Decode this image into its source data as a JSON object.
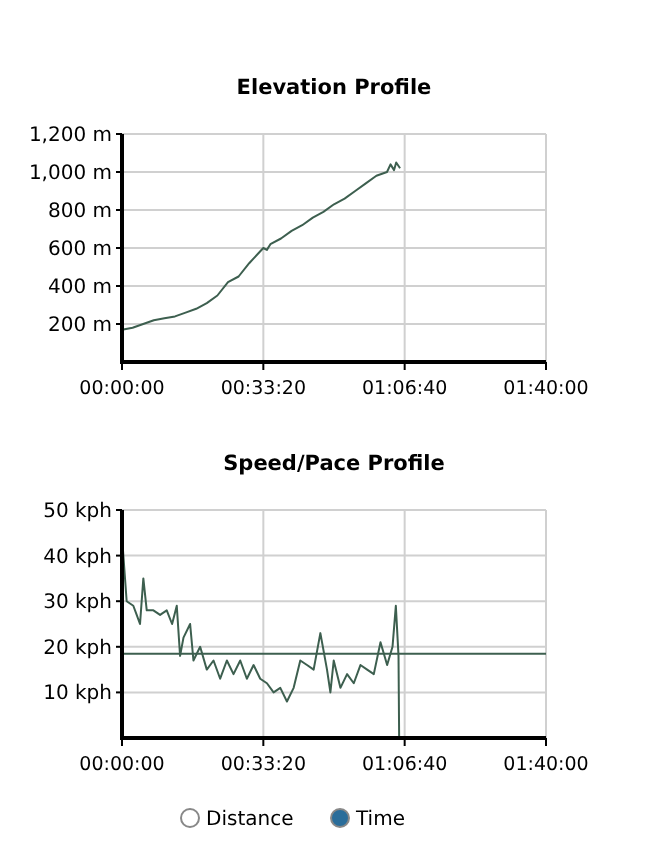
{
  "chart_data": [
    {
      "type": "line",
      "title": "Elevation Profile",
      "x": [
        0,
        150,
        300,
        450,
        600,
        750,
        900,
        1050,
        1200,
        1350,
        1500,
        1650,
        1800,
        1950,
        2000,
        2050,
        2100,
        2250,
        2400,
        2550,
        2700,
        2850,
        3000,
        3150,
        3300,
        3450,
        3600,
        3750,
        3800,
        3850,
        3880,
        3935
      ],
      "series": [
        {
          "color": "#3d5f4f",
          "values": [
            170,
            180,
            200,
            220,
            230,
            240,
            260,
            280,
            310,
            350,
            420,
            450,
            520,
            580,
            600,
            590,
            620,
            650,
            690,
            720,
            760,
            790,
            830,
            860,
            900,
            940,
            980,
            1000,
            1040,
            1010,
            1050,
            1020
          ]
        }
      ],
      "xlim": [
        0,
        6000
      ],
      "xticks": [
        {
          "value": 0,
          "label": "00:00:00"
        },
        {
          "value": 2000,
          "label": "00:33:20"
        },
        {
          "value": 4000,
          "label": "01:06:40"
        },
        {
          "value": 6000,
          "label": "01:40:00"
        }
      ],
      "ylim": [
        0,
        1200
      ],
      "yticks": [
        {
          "value": 200,
          "label": "200 m"
        },
        {
          "value": 400,
          "label": "400 m"
        },
        {
          "value": 600,
          "label": "600 m"
        },
        {
          "value": 800,
          "label": "800 m"
        },
        {
          "value": 1000,
          "label": "1,000 m"
        },
        {
          "value": 1200,
          "label": "1,200 m"
        }
      ],
      "grid": true
    },
    {
      "type": "line",
      "title": "Speed/Pace Profile",
      "x": [
        0,
        10,
        66,
        160,
        208,
        255,
        302,
        350,
        444,
        539,
        633,
        709,
        775,
        822,
        870,
        964,
        1011,
        1106,
        1200,
        1295,
        1389,
        1484,
        1578,
        1673,
        1767,
        1862,
        1956,
        2051,
        2145,
        2240,
        2334,
        2429,
        2523,
        2618,
        2712,
        2807,
        2901,
        2949,
        2996,
        3091,
        3185,
        3280,
        3374,
        3469,
        3563,
        3658,
        3752,
        3828,
        3875,
        3913,
        3922
      ],
      "series": [
        {
          "color": "#3d5f4f",
          "values": [
            0,
            42,
            30,
            29,
            27,
            25,
            35,
            28,
            28,
            27,
            28,
            25,
            29,
            18,
            22,
            25,
            17,
            20,
            15,
            17,
            13,
            17,
            14,
            17,
            13,
            16,
            13,
            12,
            10,
            11,
            8,
            11,
            17,
            16,
            15,
            23,
            15,
            10,
            17,
            11,
            14,
            12,
            16,
            15,
            14,
            21,
            16,
            20,
            29,
            18,
            0
          ]
        }
      ],
      "xlim": [
        0,
        6000
      ],
      "xticks": [
        {
          "value": 0,
          "label": "00:00:00"
        },
        {
          "value": 2000,
          "label": "00:33:20"
        },
        {
          "value": 4000,
          "label": "01:06:40"
        },
        {
          "value": 6000,
          "label": "01:40:00"
        }
      ],
      "ylim": [
        0,
        50
      ],
      "yticks": [
        {
          "value": 10,
          "label": "10 kph"
        },
        {
          "value": 20,
          "label": "20 kph"
        },
        {
          "value": 30,
          "label": "30 kph"
        },
        {
          "value": 40,
          "label": "40 kph"
        },
        {
          "value": 50,
          "label": "50 kph"
        }
      ],
      "ref_lines": [
        {
          "axis": "y",
          "value": 18.5,
          "color": "#3d5f4f"
        }
      ],
      "grid": true
    },
    {
      "type": "other",
      "annotations": [
        "Distance",
        "Time"
      ]
    }
  ]
}
